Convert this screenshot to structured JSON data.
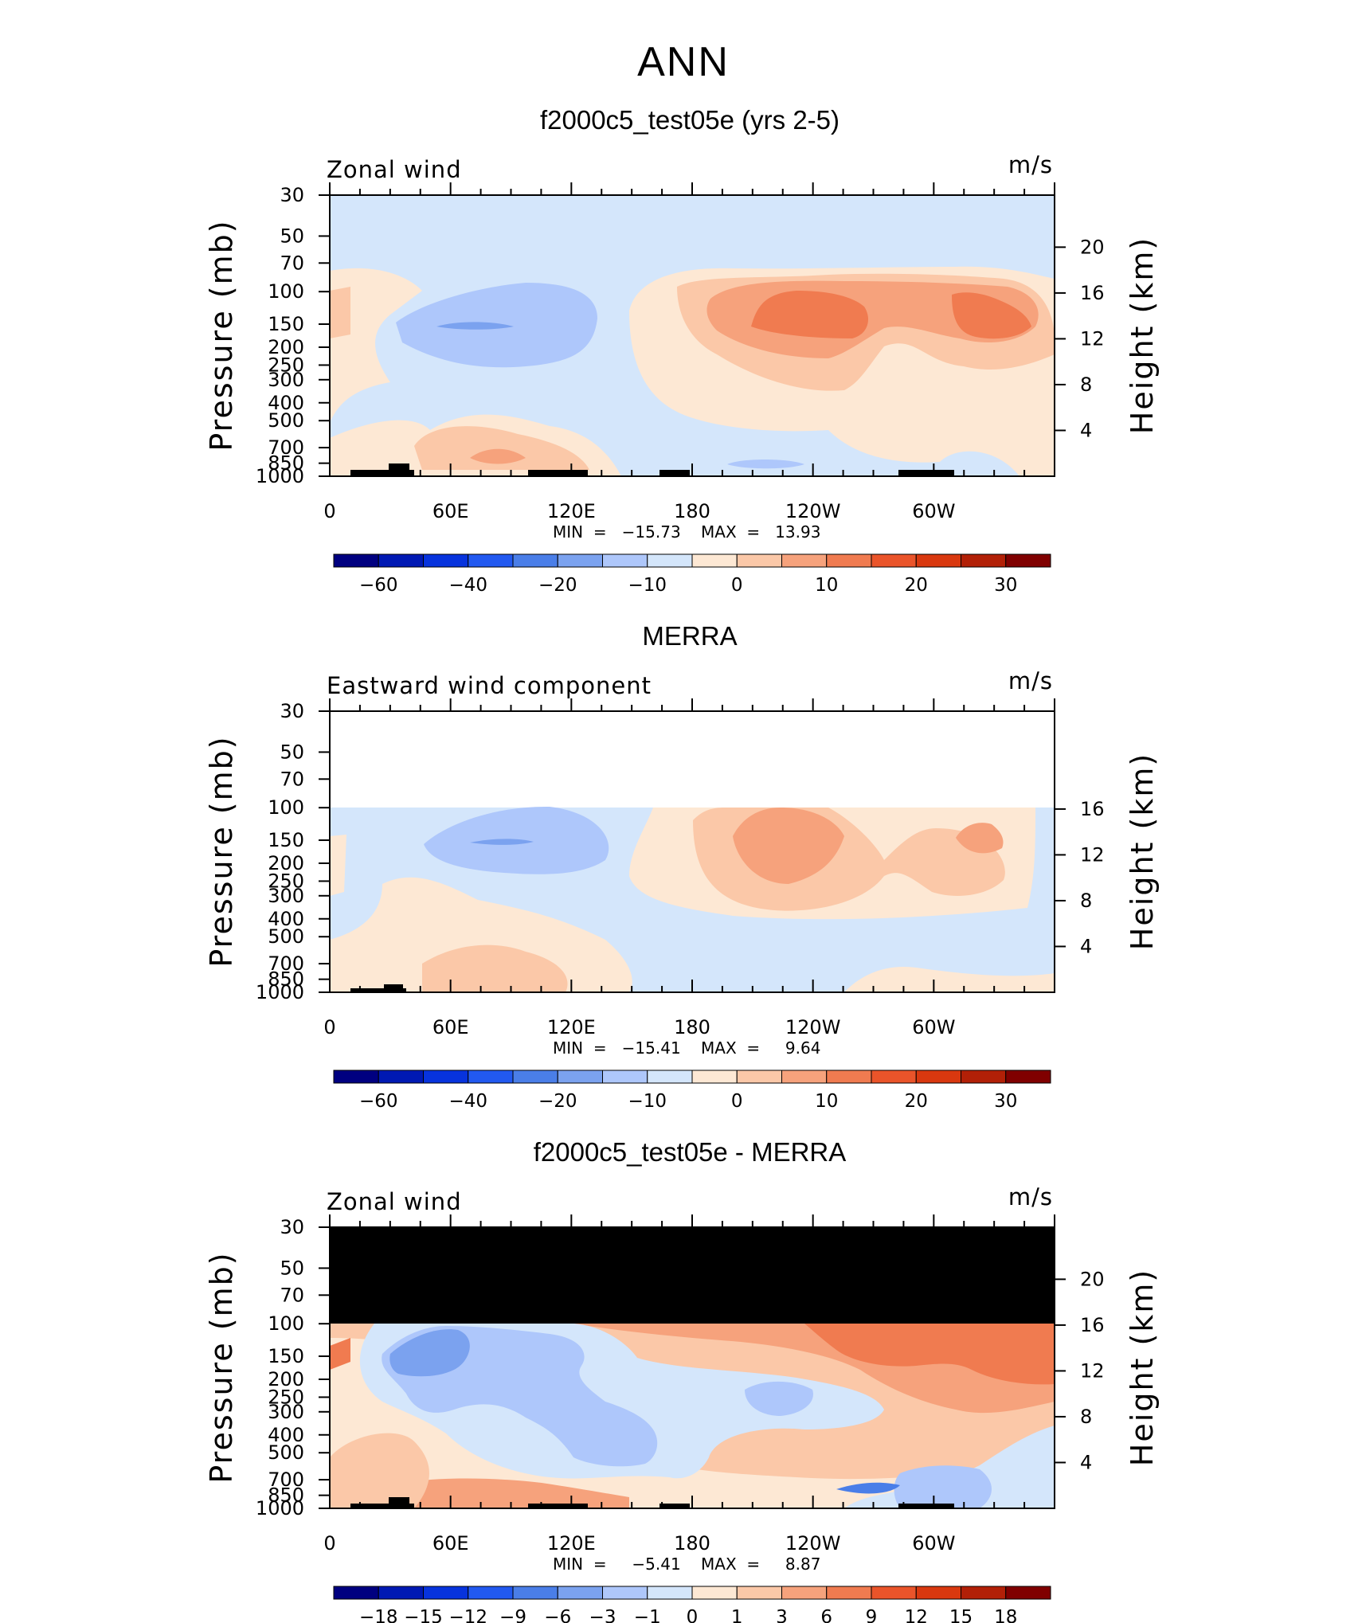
{
  "figure_title": "ANN",
  "chart_data": [
    {
      "type": "heatmap",
      "title": "f2000c5_test05e (yrs 2-5)",
      "left_label": "Zonal wind",
      "units": "m/s",
      "ylabel": "Pressure (mb)",
      "ylabel_right": "Height (km)",
      "x_ticks": [
        "0",
        "60E",
        "120E",
        "180",
        "120W",
        "60W"
      ],
      "y_ticks": [
        "30",
        "50",
        "70",
        "100",
        "150",
        "200",
        "250",
        "300",
        "400",
        "500",
        "700",
        "850",
        "1000"
      ],
      "y_ticks_right": [
        "20",
        "16",
        "12",
        "8",
        "4"
      ],
      "min_text": "MIN  =   −15.73",
      "max_text": "MAX  =   13.93",
      "colorbar_labels": [
        "−60",
        "−40",
        "−20",
        "−10",
        "0",
        "10",
        "20",
        "30"
      ],
      "colors": [
        "#000080",
        "#0019b3",
        "#0733dd",
        "#2259f0",
        "#4a7ee8",
        "#7ba2ef",
        "#aec7fb",
        "#d4e6fb",
        "#fde8d4",
        "#fbc8a8",
        "#f6a27c",
        "#f07b50",
        "#ea542a",
        "#d9380f",
        "#b22007",
        "#800000"
      ]
    },
    {
      "type": "heatmap",
      "title": "MERRA",
      "left_label": "Eastward wind component",
      "units": "m/s",
      "ylabel": "Pressure (mb)",
      "ylabel_right": "Height (km)",
      "x_ticks": [
        "0",
        "60E",
        "120E",
        "180",
        "120W",
        "60W"
      ],
      "y_ticks": [
        "30",
        "50",
        "70",
        "100",
        "150",
        "200",
        "250",
        "300",
        "400",
        "500",
        "700",
        "850",
        "1000"
      ],
      "y_ticks_right": [
        "16",
        "12",
        "8",
        "4"
      ],
      "min_text": "MIN  =   −15.41",
      "max_text": "MAX  =     9.64",
      "colorbar_labels": [
        "−60",
        "−40",
        "−20",
        "−10",
        "0",
        "10",
        "20",
        "30"
      ],
      "colors": [
        "#000080",
        "#0019b3",
        "#0733dd",
        "#2259f0",
        "#4a7ee8",
        "#7ba2ef",
        "#aec7fb",
        "#d4e6fb",
        "#fde8d4",
        "#fbc8a8",
        "#f6a27c",
        "#f07b50",
        "#ea542a",
        "#d9380f",
        "#b22007",
        "#800000"
      ]
    },
    {
      "type": "heatmap",
      "title": "f2000c5_test05e - MERRA",
      "left_label": "Zonal wind",
      "units": "m/s",
      "ylabel": "Pressure (mb)",
      "ylabel_right": "Height (km)",
      "x_ticks": [
        "0",
        "60E",
        "120E",
        "180",
        "120W",
        "60W"
      ],
      "y_ticks": [
        "30",
        "50",
        "70",
        "100",
        "150",
        "200",
        "250",
        "300",
        "400",
        "500",
        "700",
        "850",
        "1000"
      ],
      "y_ticks_right": [
        "20",
        "16",
        "12",
        "8",
        "4"
      ],
      "min_text": "MIN  =     −5.41",
      "max_text": "MAX  =     8.87",
      "colorbar_labels": [
        "−18",
        "−15",
        "−12",
        "−9",
        "−6",
        "−3",
        "−1",
        "0",
        "1",
        "3",
        "6",
        "9",
        "12",
        "15",
        "18"
      ],
      "colors": [
        "#000080",
        "#0019b3",
        "#0733dd",
        "#2259f0",
        "#4a7ee8",
        "#7ba2ef",
        "#aec7fb",
        "#d4e6fb",
        "#fde8d4",
        "#fbc8a8",
        "#f6a27c",
        "#f07b50",
        "#ea542a",
        "#d9380f",
        "#b22007",
        "#800000"
      ]
    }
  ]
}
